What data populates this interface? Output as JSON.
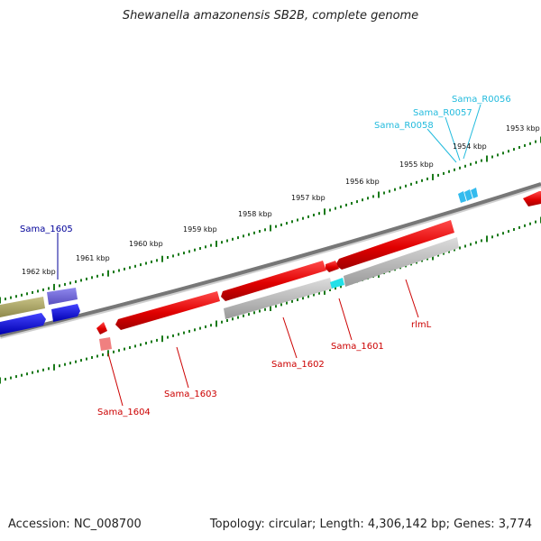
{
  "title": "Shewanella amazonensis SB2B, complete genome",
  "footer": {
    "accession": "Accession: NC_008700",
    "stats": "Topology: circular; Length: 4,306,142 bp; Genes: 3,774"
  },
  "ruler_ticks": [
    "1953 kbp",
    "1954 kbp",
    "1955 kbp",
    "1956 kbp",
    "1957 kbp",
    "1958 kbp",
    "1959 kbp",
    "1960 kbp",
    "1961 kbp",
    "1962 kbp"
  ],
  "gene_labels": {
    "sama_1605": "Sama_1605",
    "sama_1604": "Sama_1604",
    "sama_1603": "Sama_1603",
    "sama_1602": "Sama_1602",
    "sama_1601": "Sama_1601",
    "rlml": "rlmL",
    "sama_r0058": "Sama_R0058",
    "sama_r0057": "Sama_R0057",
    "sama_r0056": "Sama_R0056"
  },
  "colors": {
    "forward_cds": "#e00000",
    "reverse_cds": "#0000dd",
    "trna": "#33bbee",
    "rrna_label": "#22bbdd",
    "backbone": "#808080",
    "tick": "#1a7a1a",
    "label_red": "#cc0000",
    "label_blue": "#000099"
  }
}
